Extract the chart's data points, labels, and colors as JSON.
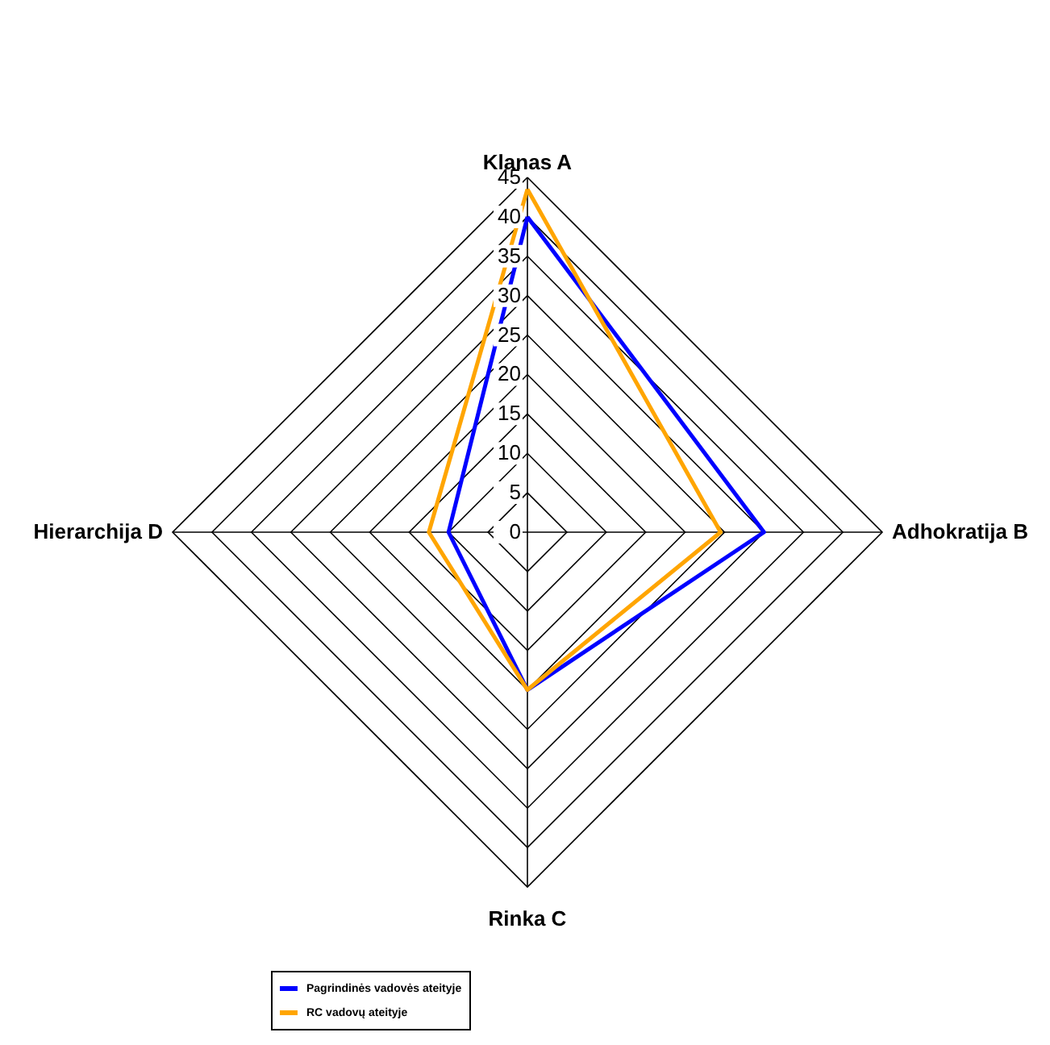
{
  "chart_data": {
    "type": "radar",
    "categories": [
      "Klanas A",
      "Adhokratija B",
      "Rinka C",
      "Hierarchija D"
    ],
    "series": [
      {
        "name": "Pagrindinės vadovės ateityje",
        "color": "#0000ff",
        "values": [
          40,
          30,
          20,
          10
        ]
      },
      {
        "name": "RC vadovų ateityje",
        "color": "#ffa500",
        "values": [
          43.5,
          24.5,
          20,
          12.5
        ]
      }
    ],
    "ylim": [
      0,
      45
    ],
    "yticks": [
      0,
      5,
      10,
      15,
      20,
      25,
      30,
      35,
      40,
      45
    ],
    "grid": true,
    "legend": "bottom left",
    "marker": "none",
    "line_style": "solid"
  }
}
